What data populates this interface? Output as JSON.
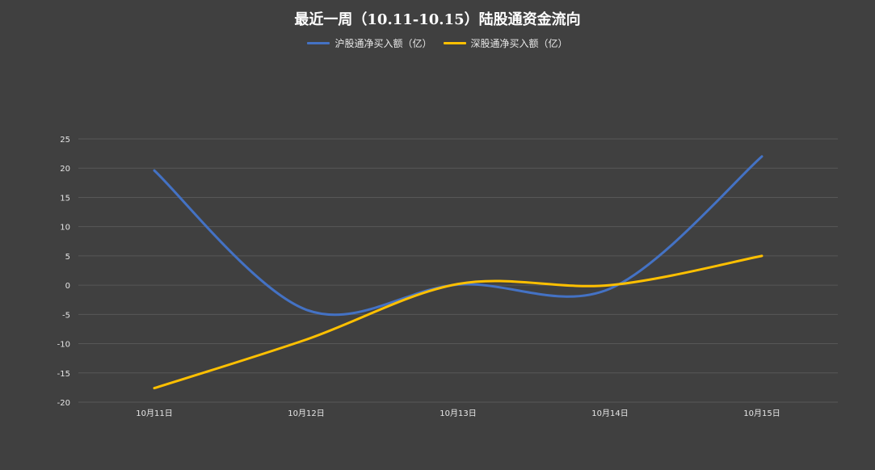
{
  "chart_data": {
    "type": "line",
    "title": "最近一周（10.11-10.15）陆股通资金流向",
    "categories": [
      "10月11日",
      "10月12日",
      "10月13日",
      "10月14日",
      "10月15日"
    ],
    "series": [
      {
        "name": "沪股通净买入额（亿）",
        "color": "#4472C4",
        "values": [
          19.6,
          -4.2,
          0.1,
          -0.6,
          22.0
        ]
      },
      {
        "name": "深股通净买入额（亿）",
        "color": "#FFC000",
        "values": [
          -17.6,
          -9.3,
          0.2,
          0.0,
          5.0
        ]
      }
    ],
    "ylim": [
      -20,
      25
    ],
    "yticks": [
      25,
      20,
      15,
      10,
      5,
      0,
      -5,
      -10,
      -15,
      -20
    ],
    "grid": true,
    "smooth": true,
    "legend_position": "top"
  },
  "colors": {
    "background": "#404040",
    "grid": "#575757"
  }
}
